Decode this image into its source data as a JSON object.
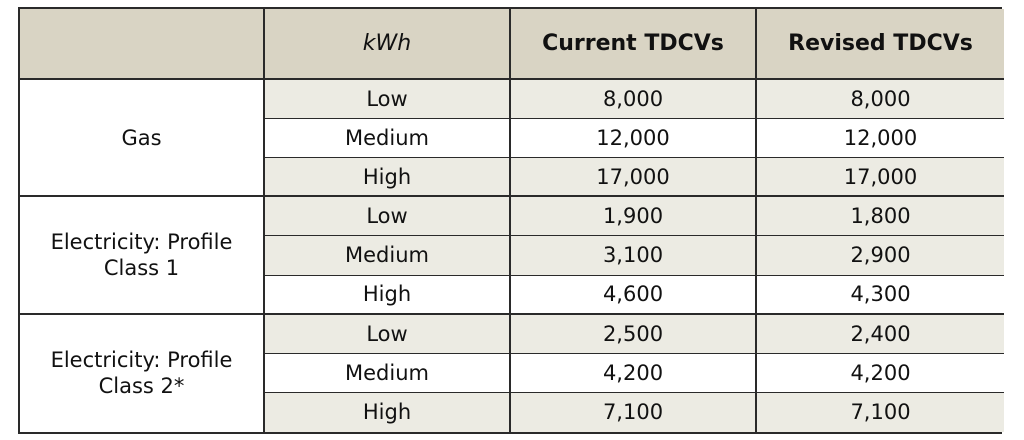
{
  "table": {
    "headers": [
      "",
      "kWh",
      "Current TDCVs",
      "Revised TDCVs"
    ],
    "groups": [
      {
        "label": "Gas",
        "rows": [
          {
            "level": "Low",
            "current": "8,000",
            "revised": "8,000"
          },
          {
            "level": "Medium",
            "current": "12,000",
            "revised": "12,000"
          },
          {
            "level": "High",
            "current": "17,000",
            "revised": "17,000"
          }
        ]
      },
      {
        "label": "Electricity: Profile Class 1",
        "rows": [
          {
            "level": "Low",
            "current": "1,900",
            "revised": "1,800"
          },
          {
            "level": "Medium",
            "current": "3,100",
            "revised": "2,900"
          },
          {
            "level": "High",
            "current": "4,600",
            "revised": "4,300"
          }
        ]
      },
      {
        "label": "Electricity: Profile Class 2*",
        "rows": [
          {
            "level": "Low",
            "current": "2,500",
            "revised": "2,400"
          },
          {
            "level": "Medium",
            "current": "4,200",
            "revised": "4,200"
          },
          {
            "level": "High",
            "current": "7,100",
            "revised": "7,100"
          }
        ]
      }
    ],
    "colors": {
      "header_bg": "#d9d4c4",
      "tinted_row_bg": "#ecebe3",
      "border": "#2a2a2a"
    }
  }
}
